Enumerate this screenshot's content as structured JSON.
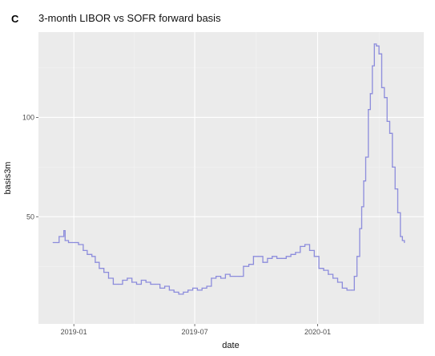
{
  "panel_label": "C",
  "chart_data": {
    "type": "line",
    "title": "3-month LIBOR vs SOFR forward basis",
    "xlabel": "date",
    "ylabel": "basis3m",
    "x_range": [
      "2018-11-09",
      "2020-06-08"
    ],
    "ylim": [
      -4,
      143
    ],
    "x_ticks": [
      {
        "label": "2019-01",
        "date": "2019-01-01"
      },
      {
        "label": "2019-07",
        "date": "2019-07-01"
      },
      {
        "label": "2020-01",
        "date": "2020-01-01"
      }
    ],
    "y_ticks": [
      50,
      100
    ],
    "grid": true,
    "legend": "none",
    "colors": {
      "line": "#8c8cdc",
      "panel_bg": "#ebebeb",
      "grid_major": "#ffffff",
      "grid_minor": "#f4f4f4"
    },
    "series": [
      {
        "points": [
          [
            "2018-12-01",
            37
          ],
          [
            "2018-12-07",
            37
          ],
          [
            "2018-12-10",
            40
          ],
          [
            "2018-12-14",
            40
          ],
          [
            "2018-12-17",
            43
          ],
          [
            "2018-12-19",
            38
          ],
          [
            "2018-12-24",
            37
          ],
          [
            "2019-01-02",
            37
          ],
          [
            "2019-01-08",
            36
          ],
          [
            "2019-01-15",
            33
          ],
          [
            "2019-01-21",
            31
          ],
          [
            "2019-01-28",
            30
          ],
          [
            "2019-02-02",
            27
          ],
          [
            "2019-02-08",
            24
          ],
          [
            "2019-02-15",
            22
          ],
          [
            "2019-02-22",
            19
          ],
          [
            "2019-03-01",
            16
          ],
          [
            "2019-03-08",
            16
          ],
          [
            "2019-03-15",
            18
          ],
          [
            "2019-03-22",
            19
          ],
          [
            "2019-03-29",
            17
          ],
          [
            "2019-04-05",
            16
          ],
          [
            "2019-04-12",
            18
          ],
          [
            "2019-04-19",
            17
          ],
          [
            "2019-04-26",
            16
          ],
          [
            "2019-05-03",
            16
          ],
          [
            "2019-05-10",
            14
          ],
          [
            "2019-05-17",
            15
          ],
          [
            "2019-05-24",
            13
          ],
          [
            "2019-05-31",
            12
          ],
          [
            "2019-06-07",
            11
          ],
          [
            "2019-06-14",
            12
          ],
          [
            "2019-06-21",
            13
          ],
          [
            "2019-06-28",
            14
          ],
          [
            "2019-07-05",
            13
          ],
          [
            "2019-07-12",
            14
          ],
          [
            "2019-07-19",
            15
          ],
          [
            "2019-07-26",
            19
          ],
          [
            "2019-08-02",
            20
          ],
          [
            "2019-08-09",
            19
          ],
          [
            "2019-08-16",
            21
          ],
          [
            "2019-08-23",
            20
          ],
          [
            "2019-08-30",
            20
          ],
          [
            "2019-09-06",
            20
          ],
          [
            "2019-09-12",
            25
          ],
          [
            "2019-09-20",
            26
          ],
          [
            "2019-09-27",
            30
          ],
          [
            "2019-10-04",
            30
          ],
          [
            "2019-10-11",
            27
          ],
          [
            "2019-10-18",
            29
          ],
          [
            "2019-10-25",
            30
          ],
          [
            "2019-11-01",
            29
          ],
          [
            "2019-11-08",
            29
          ],
          [
            "2019-11-15",
            30
          ],
          [
            "2019-11-22",
            31
          ],
          [
            "2019-11-29",
            32
          ],
          [
            "2019-12-06",
            35
          ],
          [
            "2019-12-13",
            36
          ],
          [
            "2019-12-20",
            33
          ],
          [
            "2019-12-27",
            30
          ],
          [
            "2020-01-03",
            24
          ],
          [
            "2020-01-10",
            23
          ],
          [
            "2020-01-17",
            21
          ],
          [
            "2020-01-24",
            19
          ],
          [
            "2020-01-31",
            17
          ],
          [
            "2020-02-07",
            14
          ],
          [
            "2020-02-14",
            13
          ],
          [
            "2020-02-21",
            13
          ],
          [
            "2020-02-25",
            20
          ],
          [
            "2020-02-29",
            30
          ],
          [
            "2020-03-04",
            44
          ],
          [
            "2020-03-07",
            55
          ],
          [
            "2020-03-10",
            68
          ],
          [
            "2020-03-13",
            80
          ],
          [
            "2020-03-17",
            104
          ],
          [
            "2020-03-20",
            112
          ],
          [
            "2020-03-23",
            126
          ],
          [
            "2020-03-26",
            137
          ],
          [
            "2020-03-29",
            136
          ],
          [
            "2020-04-02",
            132
          ],
          [
            "2020-04-06",
            115
          ],
          [
            "2020-04-10",
            110
          ],
          [
            "2020-04-14",
            98
          ],
          [
            "2020-04-18",
            92
          ],
          [
            "2020-04-22",
            75
          ],
          [
            "2020-04-26",
            64
          ],
          [
            "2020-04-30",
            52
          ],
          [
            "2020-05-04",
            40
          ],
          [
            "2020-05-07",
            38
          ],
          [
            "2020-05-10",
            37
          ]
        ]
      }
    ]
  }
}
